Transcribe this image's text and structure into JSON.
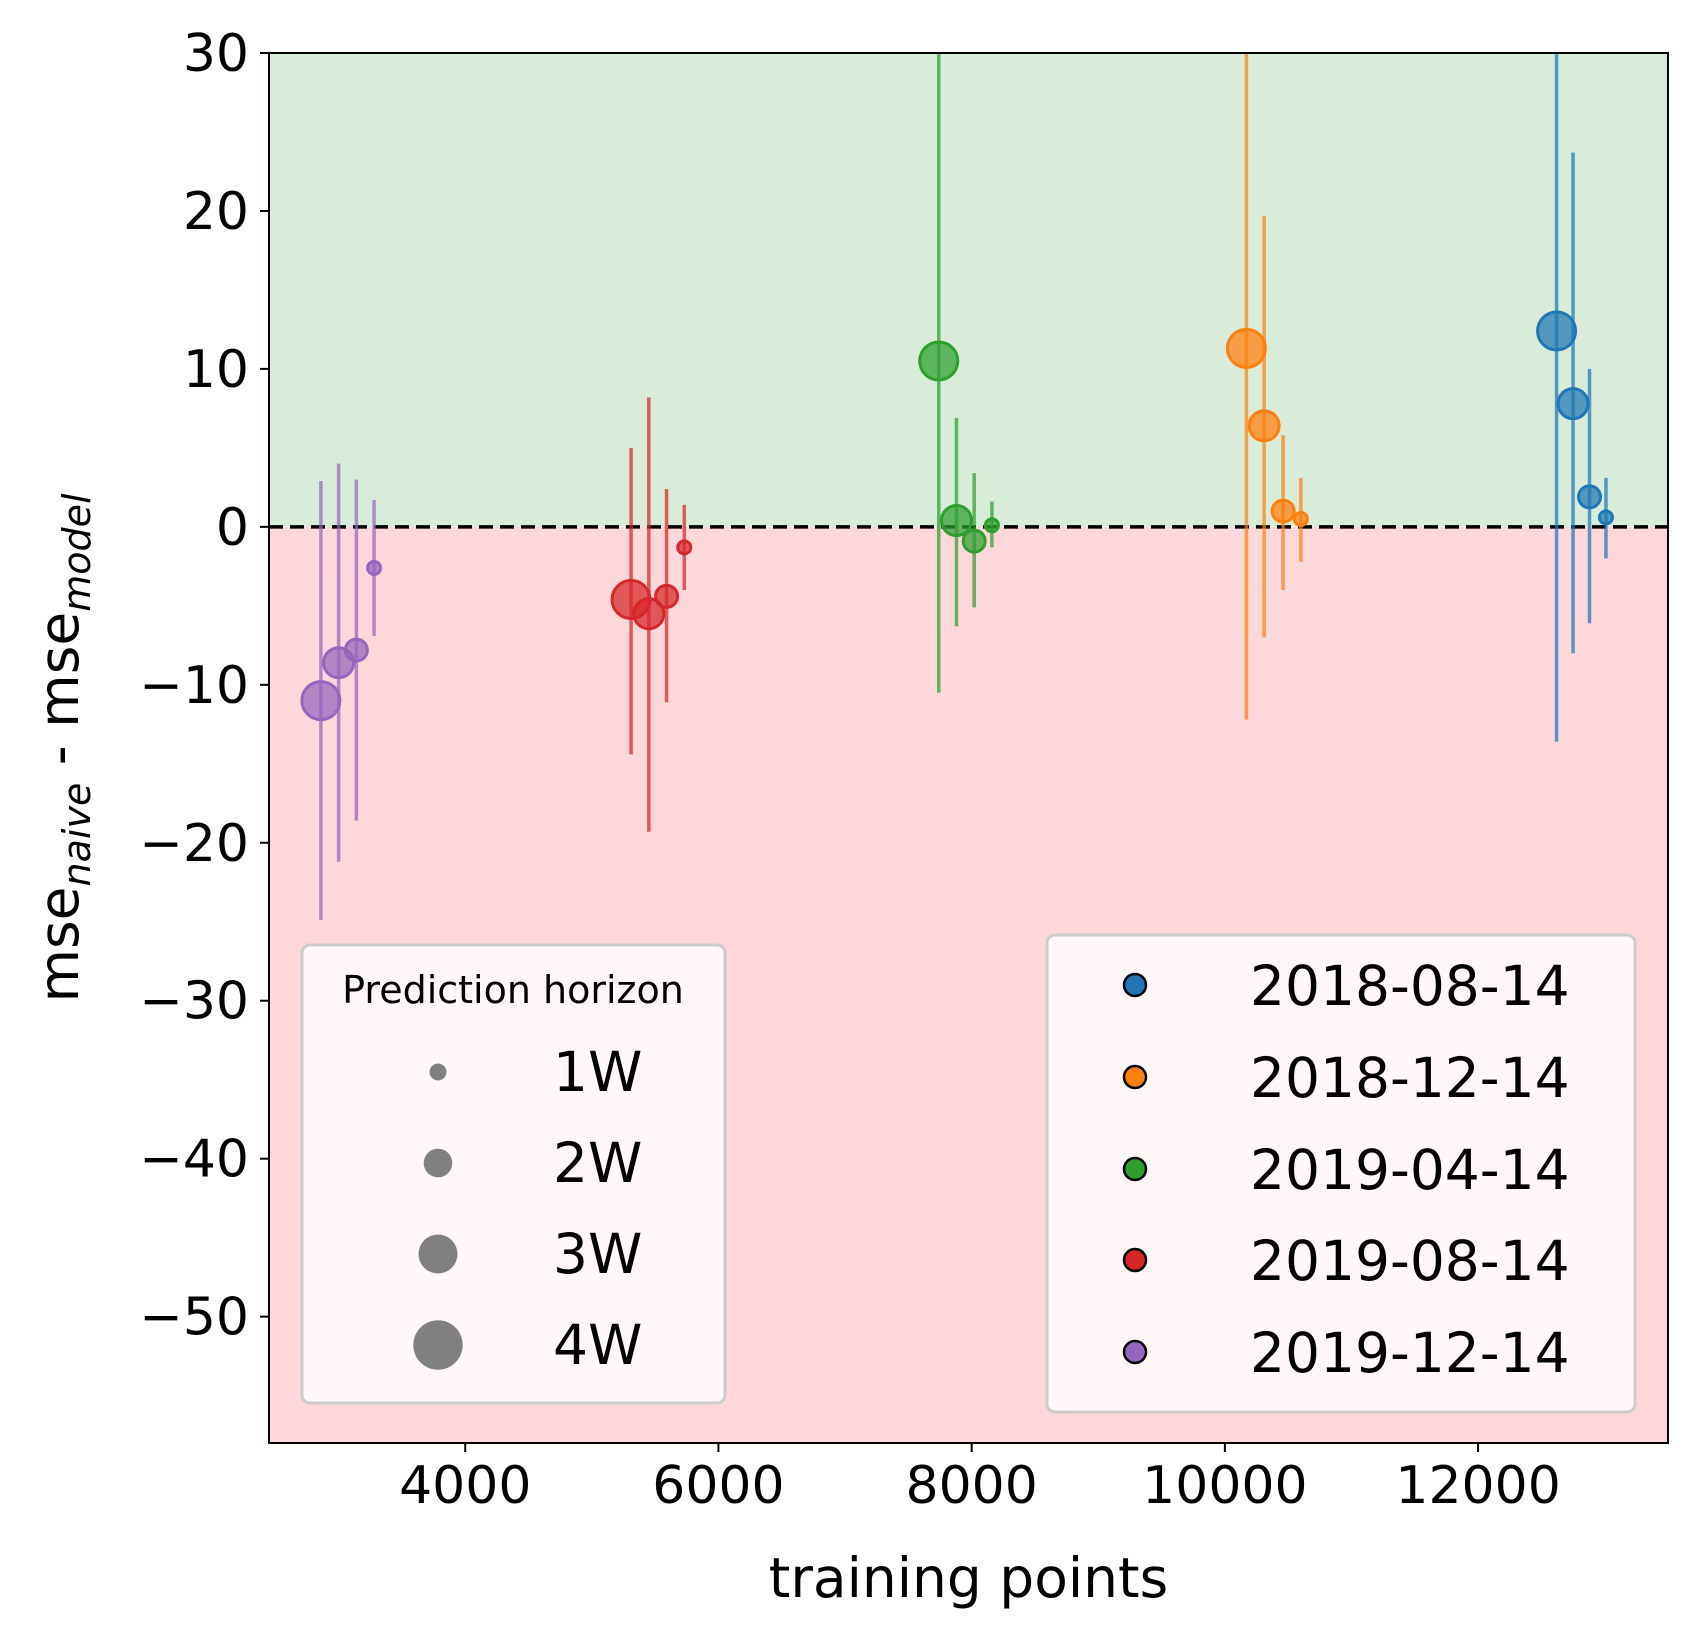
{
  "chart_data": {
    "type": "scatter",
    "xlabel": "training points",
    "ylabel_main": "mse",
    "ylabel_sub1": "naive",
    "ylabel_mid": " - mse",
    "ylabel_sub2": "model",
    "xlim": [
      2450,
      13500
    ],
    "ylim": [
      -58,
      30
    ],
    "x_ticks": [
      4000,
      6000,
      8000,
      10000,
      12000
    ],
    "y_ticks": [
      30,
      20,
      10,
      0,
      -10,
      -20,
      -30,
      -40,
      -50
    ],
    "background_regions": [
      {
        "from": 0,
        "to": 30,
        "color": "#d9ecd9"
      },
      {
        "from": -58,
        "to": 0,
        "color": "#fdd7d9"
      }
    ],
    "reference_line": {
      "y": 0,
      "style": "dashed",
      "color": "#000000"
    },
    "series": [
      {
        "name": "2018-08-14",
        "color": "#1f77b4",
        "points": [
          {
            "x": 12620,
            "y": 12.4,
            "lo": -13.6,
            "hi": 30,
            "horizon": "4W"
          },
          {
            "x": 12750,
            "y": 7.8,
            "lo": -8.0,
            "hi": 23.7,
            "horizon": "3W"
          },
          {
            "x": 12880,
            "y": 1.9,
            "lo": -6.1,
            "hi": 10.0,
            "horizon": "2W"
          },
          {
            "x": 13010,
            "y": 0.6,
            "lo": -2.0,
            "hi": 3.1,
            "horizon": "1W"
          }
        ]
      },
      {
        "name": "2018-12-14",
        "color": "#ff7f0e",
        "points": [
          {
            "x": 10170,
            "y": 11.3,
            "lo": -12.2,
            "hi": 30,
            "horizon": "4W"
          },
          {
            "x": 10310,
            "y": 6.4,
            "lo": -7.0,
            "hi": 19.7,
            "horizon": "3W"
          },
          {
            "x": 10460,
            "y": 1.0,
            "lo": -4.0,
            "hi": 5.8,
            "horizon": "2W"
          },
          {
            "x": 10600,
            "y": 0.5,
            "lo": -2.2,
            "hi": 3.1,
            "horizon": "1W"
          }
        ]
      },
      {
        "name": "2019-04-14",
        "color": "#2ca02c",
        "points": [
          {
            "x": 7740,
            "y": 10.5,
            "lo": -10.5,
            "hi": 30,
            "horizon": "4W"
          },
          {
            "x": 7880,
            "y": 0.4,
            "lo": -6.3,
            "hi": 6.9,
            "horizon": "3W"
          },
          {
            "x": 8020,
            "y": -0.9,
            "lo": -5.1,
            "hi": 3.4,
            "horizon": "2W"
          },
          {
            "x": 8160,
            "y": 0.1,
            "lo": -1.3,
            "hi": 1.6,
            "horizon": "1W"
          }
        ]
      },
      {
        "name": "2019-08-14",
        "color": "#d62728",
        "points": [
          {
            "x": 5310,
            "y": -4.6,
            "lo": -14.4,
            "hi": 5.0,
            "horizon": "4W"
          },
          {
            "x": 5450,
            "y": -5.5,
            "lo": -19.3,
            "hi": 8.2,
            "horizon": "3W"
          },
          {
            "x": 5590,
            "y": -4.4,
            "lo": -11.1,
            "hi": 2.4,
            "horizon": "2W"
          },
          {
            "x": 5730,
            "y": -1.3,
            "lo": -4.0,
            "hi": 1.4,
            "horizon": "1W"
          }
        ]
      },
      {
        "name": "2019-12-14",
        "color": "#9467bd",
        "points": [
          {
            "x": 2860,
            "y": -11.0,
            "lo": -24.9,
            "hi": 2.9,
            "horizon": "4W"
          },
          {
            "x": 3000,
            "y": -8.6,
            "lo": -21.2,
            "hi": 4.0,
            "horizon": "3W"
          },
          {
            "x": 3140,
            "y": -7.8,
            "lo": -18.6,
            "hi": 3.0,
            "horizon": "2W"
          },
          {
            "x": 3280,
            "y": -2.6,
            "lo": -6.9,
            "hi": 1.7,
            "horizon": "1W"
          }
        ]
      }
    ],
    "size_legend": {
      "title": "Prediction horizon",
      "placement": "lower-left",
      "entries": [
        "1W",
        "2W",
        "3W",
        "4W"
      ]
    },
    "color_legend": {
      "placement": "lower-right",
      "entries": [
        "2018-08-14",
        "2018-12-14",
        "2019-04-14",
        "2019-08-14",
        "2019-12-14"
      ]
    }
  }
}
